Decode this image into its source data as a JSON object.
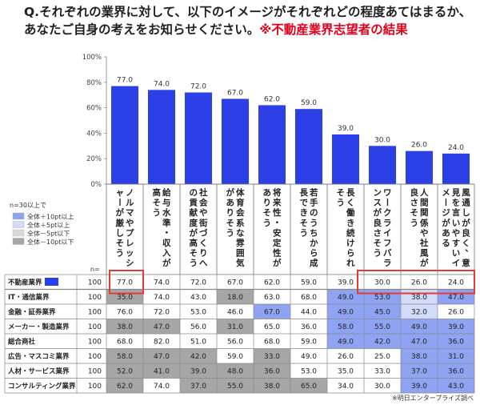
{
  "title": {
    "line1": "Q.それぞれの業界に対して、以下のイメージがそれぞれどの程度あてはまるか、",
    "line2": "あなたご自身の考えをお知らせください。",
    "highlight": "※不動産業界志望者の結果"
  },
  "source_note": "※明日エンタープライズ調べ",
  "n_label": "n=",
  "legend": {
    "title": "n=30以上で",
    "items": [
      {
        "label": "全体＋10pt以上",
        "color": "#8fa3f3"
      },
      {
        "label": "全体＋5pt以上",
        "color": "#d3dbfb"
      },
      {
        "label": "全体－5pt以下",
        "color": "#d9d9d9"
      },
      {
        "label": "全体－10pt以下",
        "color": "#a6a6a6"
      }
    ]
  },
  "chart_data": {
    "type": "bar",
    "categories": [
      "ノルマやプレッシャーが厳しそう",
      "給与水準・収入が高そう",
      "社会や街づくりへの貢献度が高そう",
      "体育会系な雰囲気がありそう",
      "将来性・安定性がありそう",
      "若手のうちから成長できそう",
      "長く働き続けられそう",
      "ワークライフバランスが良さそう",
      "人間関係や社風が良さそう",
      "風通しが良く、意見を言いやすいイメージがある"
    ],
    "values": [
      77.0,
      74.0,
      72.0,
      67.0,
      62.0,
      59.0,
      39.0,
      30.0,
      26.0,
      24.0
    ],
    "ylim": [
      0,
      100
    ],
    "yticks": [
      "0%",
      "20%",
      "40%",
      "60%",
      "80%",
      "100%"
    ],
    "bar_color": "#2d3fe6",
    "highlight_color": "#e53935",
    "table": {
      "rows": [
        {
          "label": "不動産業界",
          "n": "100",
          "values": [
            "77.0",
            "74.0",
            "72.0",
            "67.0",
            "62.0",
            "59.0",
            "39.0",
            "30.0",
            "26.0",
            "24.0"
          ],
          "shade": [
            0,
            0,
            0,
            0,
            0,
            0,
            0,
            0,
            0,
            0
          ],
          "marker": true
        },
        {
          "label": "IT・通信業界",
          "n": "100",
          "values": [
            "35.0",
            "74.0",
            "43.0",
            "18.0",
            "63.0",
            "68.0",
            "49.0",
            "53.0",
            "38.0",
            "47.0"
          ],
          "shade": [
            -2,
            0,
            0,
            -2,
            0,
            0,
            2,
            2,
            1,
            2
          ]
        },
        {
          "label": "金融・証券業界",
          "n": "100",
          "values": [
            "76.0",
            "72.0",
            "53.0",
            "46.0",
            "67.0",
            "44.0",
            "49.0",
            "45.0",
            "32.0",
            "26.0"
          ],
          "shade": [
            0,
            0,
            0,
            0,
            2,
            0,
            2,
            2,
            1,
            0
          ]
        },
        {
          "label": "メーカー・製造業界",
          "n": "100",
          "values": [
            "38.0",
            "47.0",
            "56.0",
            "31.0",
            "65.0",
            "36.0",
            "58.0",
            "55.0",
            "49.0",
            "39.0"
          ],
          "shade": [
            -2,
            -2,
            0,
            -2,
            0,
            0,
            2,
            2,
            2,
            2
          ]
        },
        {
          "label": "総合商社",
          "n": "100",
          "values": [
            "68.0",
            "82.0",
            "51.0",
            "56.0",
            "68.0",
            "59.0",
            "49.0",
            "42.0",
            "47.0",
            "36.0"
          ],
          "shade": [
            0,
            0,
            0,
            0,
            0,
            0,
            2,
            2,
            2,
            2
          ]
        },
        {
          "label": "広告・マスコミ業界",
          "n": "100",
          "values": [
            "58.0",
            "47.0",
            "42.0",
            "59.0",
            "33.0",
            "49.0",
            "26.0",
            "25.0",
            "38.0",
            "31.0"
          ],
          "shade": [
            -2,
            -2,
            -2,
            0,
            -2,
            0,
            0,
            0,
            2,
            2
          ]
        },
        {
          "label": "人材・サービス業界",
          "n": "100",
          "values": [
            "52.0",
            "41.0",
            "39.0",
            "48.0",
            "36.0",
            "53.0",
            "35.0",
            "33.0",
            "37.0",
            "36.0"
          ],
          "shade": [
            -2,
            -2,
            -2,
            -2,
            -2,
            0,
            0,
            0,
            2,
            2
          ]
        },
        {
          "label": "コンサルティング業界",
          "n": "100",
          "values": [
            "62.0",
            "74.0",
            "37.0",
            "55.0",
            "38.0",
            "65.0",
            "34.0",
            "30.0",
            "39.0",
            "43.0"
          ],
          "shade": [
            -2,
            0,
            -2,
            -2,
            -2,
            -2,
            0,
            0,
            2,
            2
          ]
        }
      ],
      "shade_colors": {
        "2": "#8fa3f3",
        "1": "#d3dbfb",
        "-1": "#d9d9d9",
        "-2": "#a6a6a6",
        "0": "#ffffff"
      }
    }
  }
}
